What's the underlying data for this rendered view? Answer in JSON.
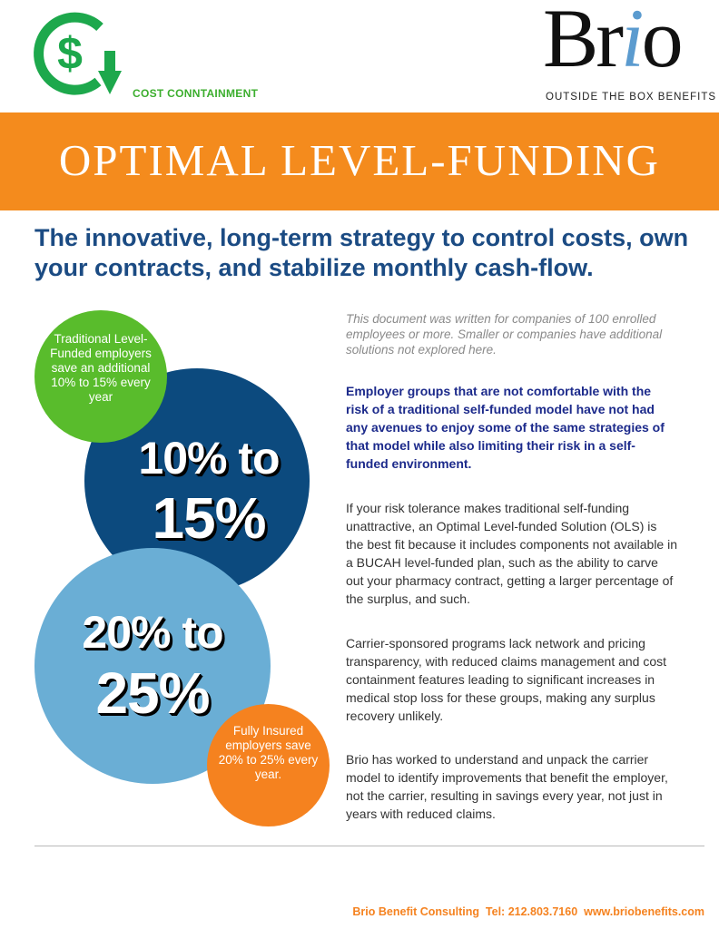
{
  "header": {
    "cost_label": "COST CONNTAINMENT",
    "brio_prefix": "Br",
    "brio_i": "i",
    "brio_suffix": "o",
    "brio_tagline": "OUTSIDE THE BOX BENEFITS",
    "icons": {
      "cost_logo": "dollar-cycle-down-arrow-icon"
    }
  },
  "banner": {
    "title": "OPTIMAL LEVEL-FUNDING"
  },
  "headline": "The innovative, long-term strategy to control costs, own your contracts, and stabilize monthly cash-flow.",
  "circles": {
    "green": {
      "text": "Traditional Level-Funded employers save an additional 10% to 15% every year"
    },
    "dark": {
      "line1": "10% to",
      "line2": "15%"
    },
    "light": {
      "line1": "20% to",
      "line2": "25%"
    },
    "orange": {
      "text": "Fully Insured employers save 20% to 25% every year."
    }
  },
  "body": {
    "intro": "This document was written for companies of 100 enrolled employees or more. Smaller or companies have additional solutions not explored here.",
    "lead": "Employer groups that are not comfortable with the risk of a traditional self-funded model have not had any avenues to enjoy some of the same strategies of that model while also limiting their risk in a self-funded environment.",
    "para1": "If your risk tolerance makes traditional self-funding unattractive, an Optimal Level-funded Solution (OLS) is the best fit because it includes components not available in a BUCAH level-funded plan, such as the ability to carve out your pharmacy contract, getting a larger percentage of the surplus, and such.",
    "para2": "Carrier-sponsored programs lack network and pricing transparency, with reduced claims management and cost containment features leading to significant increases in medical stop loss for these groups, making any surplus recovery unlikely.",
    "para3": "Brio has worked to understand and unpack the carrier model to identify improvements that benefit the employer, not the carrier, resulting in savings every year, not just in years with reduced claims."
  },
  "footer": {
    "text": "Brio Benefit Consulting  Tel: 212.803.7160  www.briobenefits.com"
  },
  "colors": {
    "orange": "#f48b1d",
    "navy": "#1b4b83",
    "green": "#59bc2c",
    "dark_blue": "#0c4a7e",
    "light_blue": "#6aaed5"
  }
}
